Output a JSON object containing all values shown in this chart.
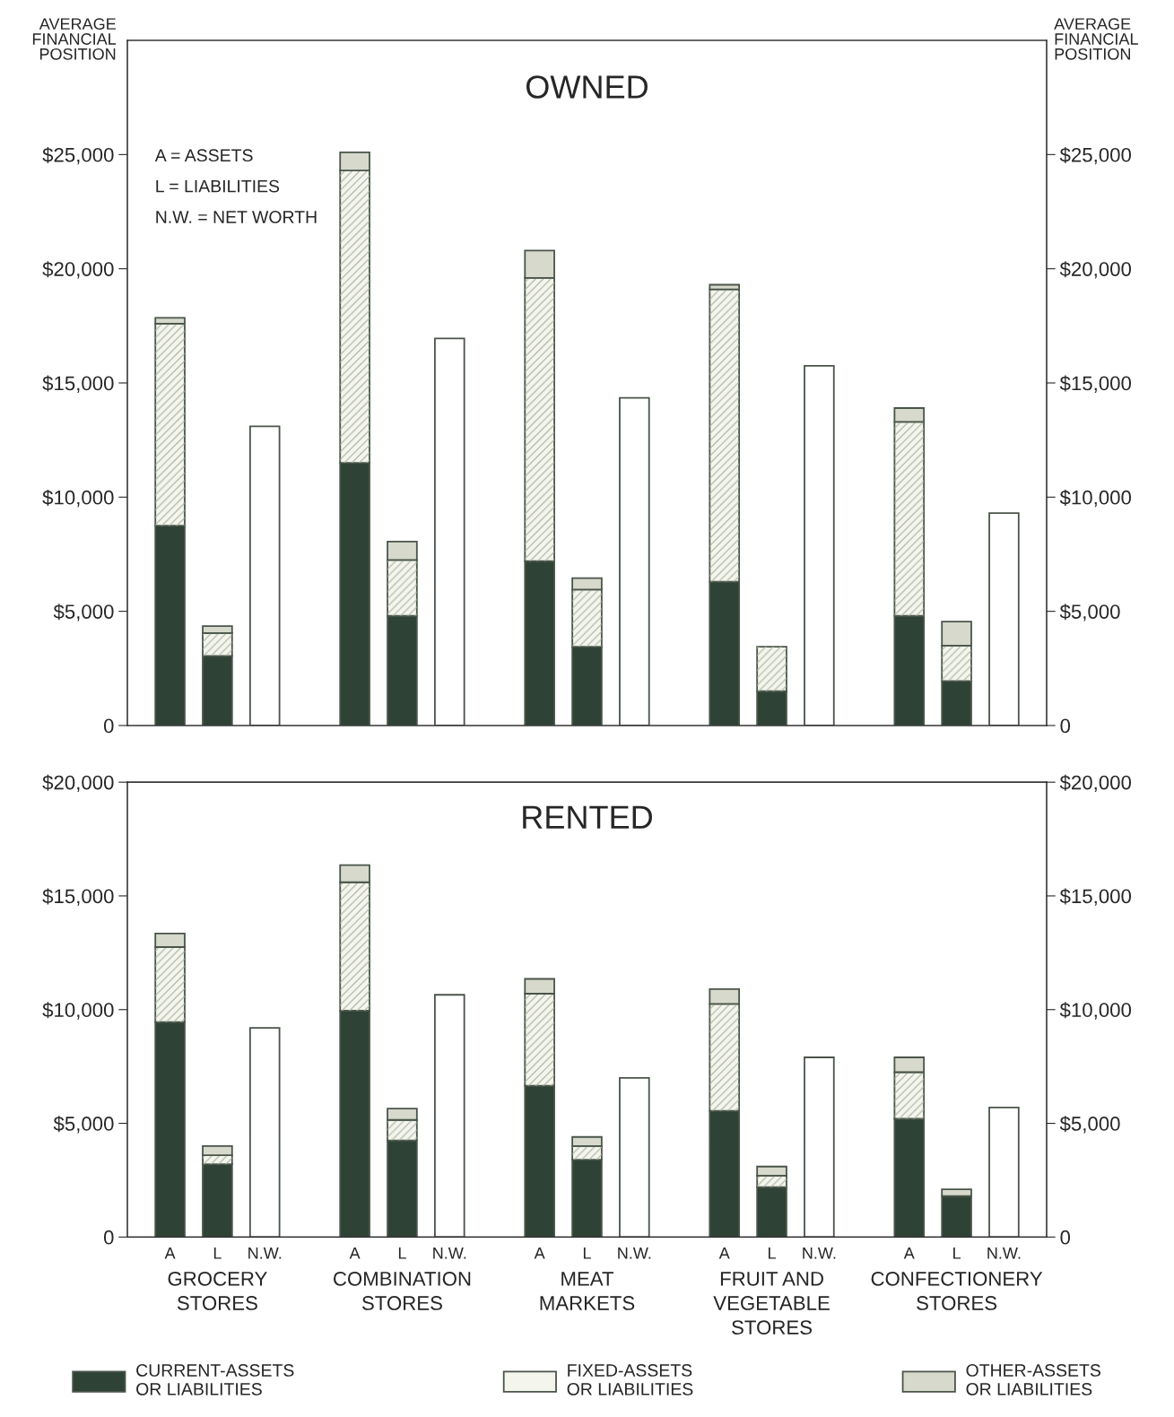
{
  "chart_data": [
    {
      "type": "bar",
      "title": "OWNED",
      "ylabel": "AVERAGE\nFINANCIAL\nPOSITION",
      "y2label": "AVERAGE\nFINANCIAL\nPOSITION",
      "stacked": true,
      "tick_labels": "y",
      "grid": false,
      "categories": [
        null,
        null,
        null,
        null,
        null,
        null,
        null,
        null,
        null,
        null,
        null,
        null,
        null,
        null,
        null
      ],
      "series": [
        {
          "color": "#2f4236",
          "values": [
            8750,
            3050,
            null,
            11500,
            4800,
            null,
            7200,
            3450,
            null,
            6300,
            1500,
            null,
            4800,
            1950,
            null
          ]
        },
        {
          "color": "#f4f5ec",
          "values": [
            8850,
            1000,
            null,
            12800,
            2450,
            null,
            12400,
            2500,
            null,
            12800,
            1950,
            null,
            8500,
            1550,
            null
          ]
        },
        {
          "color": "#d6d9cc",
          "values": [
            250,
            300,
            null,
            800,
            800,
            null,
            1200,
            500,
            null,
            200,
            null,
            null,
            600,
            1050,
            null
          ]
        },
        {
          "color": "#ffffff",
          "values": [
            null,
            null,
            13100,
            null,
            null,
            16950,
            null,
            null,
            14350,
            null,
            null,
            15750,
            null,
            null,
            9300
          ]
        }
      ],
      "ylim": [
        0,
        30000
      ],
      "yticks": [
        0,
        {
          "value": 5000,
          "label": "$5,000"
        },
        {
          "value": 10000,
          "label": "$10,000"
        },
        {
          "value": 15000,
          "label": "$15,000"
        },
        {
          "value": 20000,
          "label": "$20,000"
        },
        {
          "value": 25000,
          "label": "$25,000"
        }
      ],
      "y2lim": [
        0,
        30000
      ],
      "y2ticks": [
        0,
        {
          "value": 5000,
          "label": "$5,000"
        },
        {
          "value": 10000,
          "label": "$10,000"
        },
        {
          "value": 15000,
          "label": "$15,000"
        },
        {
          "value": 20000,
          "label": "$20,000"
        },
        {
          "value": 25000,
          "label": "$25,000"
        }
      ],
      "annotations": [
        "A = ASSETS",
        "L = LIABILITIES",
        "N.W. = NET WORTH"
      ]
    },
    {
      "type": "bar",
      "title": "RENTED",
      "stacked": true,
      "grid": false,
      "legend": "bottom",
      "categories": [
        "A",
        "L",
        "N.W.",
        "A",
        "L",
        "N.W.",
        "A",
        "L",
        "N.W.",
        "A",
        "L",
        "N.W.",
        "A",
        "L",
        "N.W."
      ],
      "series": [
        {
          "name": "CURRENT-ASSETS\nOR LIABILITIES",
          "color": "#2f4236",
          "values": [
            9450,
            3200,
            null,
            9950,
            4250,
            null,
            6650,
            3400,
            null,
            5550,
            2200,
            null,
            5200,
            1800,
            null
          ]
        },
        {
          "name": "FIXED-ASSETS\nOR LIABILITIES",
          "color": "#f4f5ec",
          "values": [
            3300,
            400,
            null,
            5650,
            900,
            null,
            4050,
            600,
            null,
            4700,
            500,
            null,
            2050,
            null,
            null
          ]
        },
        {
          "name": "OTHER-ASSETS\nOR LIABILITIES",
          "color": "#d6d9cc",
          "values": [
            600,
            400,
            null,
            750,
            500,
            null,
            650,
            400,
            null,
            650,
            400,
            null,
            650,
            300,
            null
          ]
        },
        {
          "color": "#ffffff",
          "values": [
            null,
            null,
            9200,
            null,
            null,
            10650,
            null,
            null,
            7000,
            null,
            null,
            7900,
            null,
            null,
            5700
          ]
        }
      ],
      "ylim": [
        0,
        20000
      ],
      "yticks": [
        0,
        {
          "value": 5000,
          "label": "$5,000"
        },
        {
          "value": 10000,
          "label": "$10,000"
        },
        {
          "value": 15000,
          "label": "$15,000"
        },
        {
          "value": 20000,
          "label": "$20,000"
        }
      ],
      "y2lim": [
        0,
        20000
      ],
      "y2ticks": [
        0,
        {
          "value": 5000,
          "label": "$5,000"
        },
        {
          "value": 10000,
          "label": "$10,000"
        },
        {
          "value": 15000,
          "label": "$15,000"
        },
        {
          "value": 20000,
          "label": "$20,000"
        }
      ],
      "annotations": [
        "GROCERY\nSTORES",
        "COMBINATION\nSTORES",
        "MEAT\nMARKETS",
        "FRUIT AND\nVEGETABLE\nSTORES",
        "CONFECTIONERY\nSTORES"
      ]
    }
  ]
}
